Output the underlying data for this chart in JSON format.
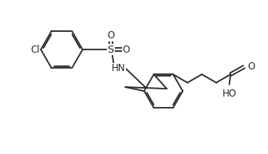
{
  "bg_color": "#ffffff",
  "line_color": "#2a2a2a",
  "line_width": 1.3,
  "font_size": 8.5,
  "fig_width": 3.36,
  "fig_height": 1.93,
  "dpi": 100,
  "xlim": [
    0,
    10
  ],
  "ylim": [
    0,
    5.75
  ]
}
